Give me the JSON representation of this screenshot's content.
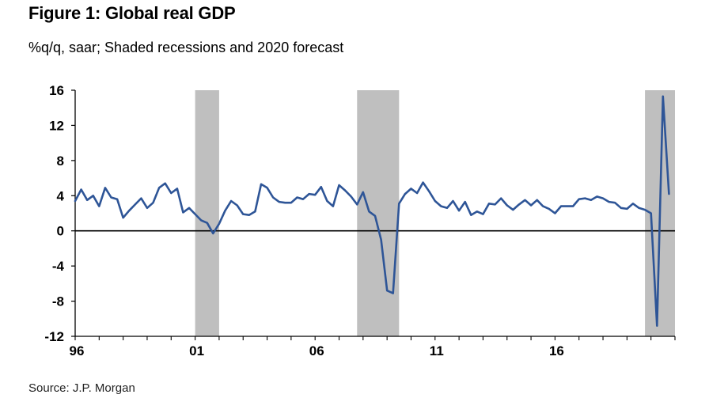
{
  "title": "Figure 1: Global real GDP",
  "subtitle": "%q/q, saar; Shaded recessions and 2020 forecast",
  "source": "Source: J.P. Morgan",
  "colors": {
    "line": "#2e5597",
    "recession": "#bfbfbf",
    "axis": "#000000"
  },
  "chart_data": {
    "type": "line",
    "title": "Figure 1: Global real GDP",
    "subtitle": "%q/q, saar; Shaded recessions and 2020 forecast",
    "xlabel": "",
    "ylabel": "",
    "xlim": [
      1996.0,
      2021.0
    ],
    "ylim": [
      -12,
      16
    ],
    "yticks": [
      16,
      12,
      8,
      4,
      0,
      -4,
      -8,
      -12
    ],
    "ytick_labels": [
      "16",
      "12",
      "8",
      "4",
      "0",
      "-4",
      "-8",
      "-12"
    ],
    "xticks": [
      1996,
      2001,
      2006,
      2011,
      2016
    ],
    "xtick_labels": [
      "96",
      "01",
      "06",
      "11",
      "16"
    ],
    "recessions": [
      [
        2001.0,
        2002.0
      ],
      [
        2007.75,
        2009.5
      ],
      [
        2019.75,
        2021.0
      ]
    ],
    "zero_line": true,
    "series": [
      {
        "name": "Global real GDP",
        "x": [
          1996.0,
          1996.25,
          1996.5,
          1996.75,
          1997.0,
          1997.25,
          1997.5,
          1997.75,
          1998.0,
          1998.25,
          1998.5,
          1998.75,
          1999.0,
          1999.25,
          1999.5,
          1999.75,
          2000.0,
          2000.25,
          2000.5,
          2000.75,
          2001.0,
          2001.25,
          2001.5,
          2001.75,
          2002.0,
          2002.25,
          2002.5,
          2002.75,
          2003.0,
          2003.25,
          2003.5,
          2003.75,
          2004.0,
          2004.25,
          2004.5,
          2004.75,
          2005.0,
          2005.25,
          2005.5,
          2005.75,
          2006.0,
          2006.25,
          2006.5,
          2006.75,
          2007.0,
          2007.25,
          2007.5,
          2007.75,
          2008.0,
          2008.25,
          2008.5,
          2008.75,
          2009.0,
          2009.25,
          2009.5,
          2009.75,
          2010.0,
          2010.25,
          2010.5,
          2010.75,
          2011.0,
          2011.25,
          2011.5,
          2011.75,
          2012.0,
          2012.25,
          2012.5,
          2012.75,
          2013.0,
          2013.25,
          2013.5,
          2013.75,
          2014.0,
          2014.25,
          2014.5,
          2014.75,
          2015.0,
          2015.25,
          2015.5,
          2015.75,
          2016.0,
          2016.25,
          2016.5,
          2016.75,
          2017.0,
          2017.25,
          2017.5,
          2017.75,
          2018.0,
          2018.25,
          2018.5,
          2018.75,
          2019.0,
          2019.25,
          2019.5,
          2019.75,
          2020.0,
          2020.25,
          2020.5,
          2020.75
        ],
        "values": [
          3.4,
          4.7,
          3.5,
          4.0,
          2.8,
          4.9,
          3.8,
          3.6,
          1.5,
          2.3,
          3.0,
          3.7,
          2.6,
          3.2,
          4.9,
          5.4,
          4.3,
          4.8,
          2.1,
          2.6,
          1.9,
          1.2,
          0.9,
          -0.3,
          0.8,
          2.3,
          3.4,
          2.9,
          1.9,
          1.8,
          2.2,
          5.3,
          4.9,
          3.8,
          3.3,
          3.2,
          3.2,
          3.8,
          3.6,
          4.2,
          4.1,
          5.0,
          3.4,
          2.8,
          5.2,
          4.6,
          3.9,
          3.0,
          4.4,
          2.2,
          1.7,
          -1.0,
          -6.8,
          -7.1,
          3.1,
          4.2,
          4.8,
          4.3,
          5.5,
          4.5,
          3.4,
          2.8,
          2.6,
          3.4,
          2.3,
          3.3,
          1.8,
          2.2,
          1.9,
          3.1,
          3.0,
          3.7,
          2.9,
          2.4,
          3.0,
          3.5,
          2.9,
          3.5,
          2.8,
          2.5,
          2.0,
          2.8,
          2.8,
          2.8,
          3.6,
          3.7,
          3.5,
          3.9,
          3.7,
          3.3,
          3.2,
          2.6,
          2.5,
          3.1,
          2.6,
          2.4,
          2.0,
          -10.8,
          15.3,
          4.2
        ]
      }
    ]
  }
}
